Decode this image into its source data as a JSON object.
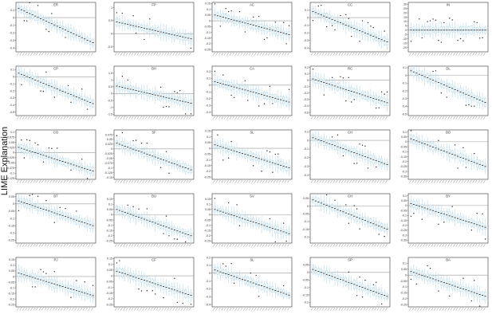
{
  "figure": {
    "ylabel": "LIME Explanation",
    "colors": {
      "box": "#a8d4ea",
      "whisker": "#a8d4ea",
      "median": "#111111",
      "outlier": "#222222",
      "zero_line": "#9a9a9a",
      "frame": "#333333"
    }
  },
  "chart_data": [
    {
      "type": "box",
      "title": "ER",
      "n": 28,
      "ylim": [
        -0.45,
        0.2
      ],
      "yticks": [
        -0.4,
        -0.3,
        -0.2,
        -0.1,
        0.0,
        0.1
      ],
      "range": [
        0.12,
        -0.33
      ],
      "zero_line": 0
    },
    {
      "type": "box",
      "title": "FP",
      "n": 28,
      "ylim": [
        -0.7,
        1.2
      ],
      "yticks": [
        -0.5,
        0.0,
        0.5,
        1.0
      ],
      "range": [
        0.45,
        -0.2
      ],
      "zero_line": 0
    },
    {
      "type": "box",
      "title": "AC",
      "n": 28,
      "ylim": [
        -0.27,
        0.16
      ],
      "yticks": [
        -0.25,
        -0.2,
        -0.15,
        -0.1,
        -0.05,
        0.0,
        0.05,
        0.1,
        0.15
      ],
      "range": [
        0.05,
        -0.12
      ],
      "zero_line": 0
    },
    {
      "type": "box",
      "title": "CC",
      "n": 28,
      "ylim": [
        -0.45,
        0.2
      ],
      "yticks": [
        -0.4,
        -0.3,
        -0.2,
        -0.1,
        0.0,
        0.1
      ],
      "range": [
        0.08,
        -0.32
      ],
      "zero_line": 0
    },
    {
      "type": "box",
      "title": "IN",
      "n": 28,
      "ylim": [
        -25,
        32
      ],
      "yticks": [
        -20,
        -15,
        -10,
        -5,
        0,
        5,
        10,
        15,
        20,
        25,
        30
      ],
      "range": [
        0,
        0
      ],
      "zero_line": 0
    },
    {
      "type": "box",
      "title": "CP",
      "n": 28,
      "ylim": [
        -0.55,
        0.15
      ],
      "yticks": [
        -0.5,
        -0.4,
        -0.3,
        -0.2,
        -0.1,
        0.0,
        0.1
      ],
      "range": [
        0.05,
        -0.38
      ],
      "zero_line": 0
    },
    {
      "type": "box",
      "title": "BH",
      "n": 28,
      "ylim": [
        -1.6,
        2.0
      ],
      "yticks": [
        -1.5,
        -1.0,
        -0.5,
        0.0,
        0.5,
        1.0,
        1.5
      ],
      "range": [
        0.55,
        -0.7
      ],
      "zero_line": 0
    },
    {
      "type": "box",
      "title": "CA",
      "n": 28,
      "ylim": [
        -0.45,
        0.28
      ],
      "yticks": [
        -0.4,
        -0.3,
        -0.2,
        -0.1,
        0.0,
        0.1,
        0.2
      ],
      "range": [
        0.05,
        -0.25
      ],
      "zero_line": 0
    },
    {
      "type": "box",
      "title": "RC",
      "n": 28,
      "ylim": [
        -0.55,
        0.22
      ],
      "yticks": [
        -0.5,
        -0.4,
        -0.3,
        -0.2,
        -0.1,
        0.0,
        0.1,
        0.2
      ],
      "range": [
        0.02,
        -0.35
      ],
      "zero_line": 0
    },
    {
      "type": "box",
      "title": "DL",
      "n": 28,
      "ylim": [
        -0.52,
        0.12
      ],
      "yticks": [
        -0.5,
        -0.4,
        -0.3,
        -0.2,
        -0.1,
        0.0,
        0.1
      ],
      "range": [
        0.06,
        -0.35
      ],
      "zero_line": 0
    },
    {
      "type": "box",
      "title": "CO",
      "n": 28,
      "ylim": [
        -0.13,
        0.11
      ],
      "yticks": [
        -0.125,
        -0.1,
        -0.075,
        -0.05,
        -0.025,
        0.0,
        0.025,
        0.05,
        0.075,
        0.1
      ],
      "range": [
        0.025,
        -0.09
      ],
      "zero_line": 0
    },
    {
      "type": "box",
      "title": "SF",
      "n": 28,
      "ylim": [
        -0.16,
        0.1
      ],
      "yticks": [
        -0.15,
        -0.125,
        -0.1,
        -0.075,
        -0.05,
        -0.025,
        0.0,
        0.025,
        0.05,
        0.075
      ],
      "range": [
        0.03,
        -0.11
      ],
      "zero_line": 0
    },
    {
      "type": "box",
      "title": "SL",
      "n": 28,
      "ylim": [
        -0.27,
        0.16
      ],
      "yticks": [
        -0.25,
        -0.2,
        -0.15,
        -0.1,
        -0.05,
        0.0,
        0.05,
        0.1,
        0.15
      ],
      "range": [
        0.03,
        -0.17
      ],
      "zero_line": 0
    },
    {
      "type": "box",
      "title": "CH",
      "n": 28,
      "ylim": [
        -0.45,
        0.12
      ],
      "yticks": [
        -0.4,
        -0.3,
        -0.2,
        -0.1,
        0.0,
        0.1
      ],
      "range": [
        0.03,
        -0.28
      ],
      "zero_line": 0
    },
    {
      "type": "box",
      "title": "BO",
      "n": 28,
      "ylim": [
        -0.38,
        0.12
      ],
      "yticks": [
        -0.35,
        -0.3,
        -0.25,
        -0.2,
        -0.15,
        -0.1,
        -0.05,
        0.0,
        0.05,
        0.1
      ],
      "range": [
        0.03,
        -0.25
      ],
      "zero_line": 0
    },
    {
      "type": "box",
      "title": "BT",
      "n": 28,
      "ylim": [
        -0.27,
        0.07
      ],
      "yticks": [
        -0.25,
        -0.2,
        -0.15,
        -0.1,
        -0.05,
        0.0,
        0.05
      ],
      "range": [
        0.02,
        -0.15
      ],
      "zero_line": 0
    },
    {
      "type": "box",
      "title": "BU",
      "n": 28,
      "ylim": [
        -0.27,
        0.2
      ],
      "yticks": [
        -0.25,
        -0.2,
        -0.15,
        -0.1,
        -0.05,
        0.0,
        0.05,
        0.1,
        0.15
      ],
      "range": [
        0.05,
        -0.2
      ],
      "zero_line": 0
    },
    {
      "type": "box",
      "title": "SV",
      "n": 28,
      "ylim": [
        -0.27,
        0.2
      ],
      "yticks": [
        -0.25,
        -0.2,
        -0.15,
        -0.1,
        -0.05,
        0.0,
        0.05,
        0.1,
        0.15
      ],
      "range": [
        0.05,
        -0.18
      ],
      "zero_line": 0
    },
    {
      "type": "box",
      "title": "CH",
      "n": 28,
      "ylim": [
        -0.24,
        0.08
      ],
      "yticks": [
        -0.2,
        -0.15,
        -0.1,
        -0.05,
        0.0,
        0.05
      ],
      "range": [
        0.04,
        -0.15
      ],
      "zero_line": 0
    },
    {
      "type": "box",
      "title": "BY",
      "n": 28,
      "ylim": [
        -0.38,
        0.12
      ],
      "yticks": [
        -0.35,
        -0.3,
        -0.25,
        -0.2,
        -0.15,
        -0.1,
        -0.05,
        0.0,
        0.05,
        0.1
      ],
      "range": [
        0.02,
        -0.22
      ],
      "zero_line": 0
    },
    {
      "type": "box",
      "title": "PJ",
      "n": 28,
      "ylim": [
        -0.27,
        0.17
      ],
      "yticks": [
        -0.25,
        -0.2,
        -0.15,
        -0.1,
        -0.05,
        0.0,
        0.05,
        0.1,
        0.15
      ],
      "range": [
        0.03,
        -0.17
      ],
      "zero_line": 0
    },
    {
      "type": "box",
      "title": "CF",
      "n": 28,
      "ylim": [
        -0.27,
        0.16
      ],
      "yticks": [
        -0.25,
        -0.2,
        -0.15,
        -0.1,
        -0.05,
        0.0,
        0.05,
        0.1,
        0.15
      ],
      "range": [
        0.04,
        -0.17
      ],
      "zero_line": 0
    },
    {
      "type": "box",
      "title": "SL",
      "n": 28,
      "ylim": [
        -0.43,
        0.2
      ],
      "yticks": [
        -0.4,
        -0.3,
        -0.2,
        -0.1,
        0.0,
        0.1,
        0.2
      ],
      "range": [
        0.04,
        -0.28
      ],
      "zero_line": 0
    },
    {
      "type": "box",
      "title": "SP",
      "n": 28,
      "ylim": [
        -0.23,
        0.1
      ],
      "yticks": [
        -0.2,
        -0.15,
        -0.1,
        -0.05,
        0.0,
        0.05
      ],
      "range": [
        0.02,
        -0.16
      ],
      "zero_line": 0
    },
    {
      "type": "box",
      "title": "BA",
      "n": 28,
      "ylim": [
        -0.27,
        0.15
      ],
      "yticks": [
        -0.25,
        -0.2,
        -0.15,
        -0.1,
        -0.05,
        0.0,
        0.05,
        0.1
      ],
      "range": [
        0.03,
        -0.18
      ],
      "zero_line": 0
    }
  ]
}
